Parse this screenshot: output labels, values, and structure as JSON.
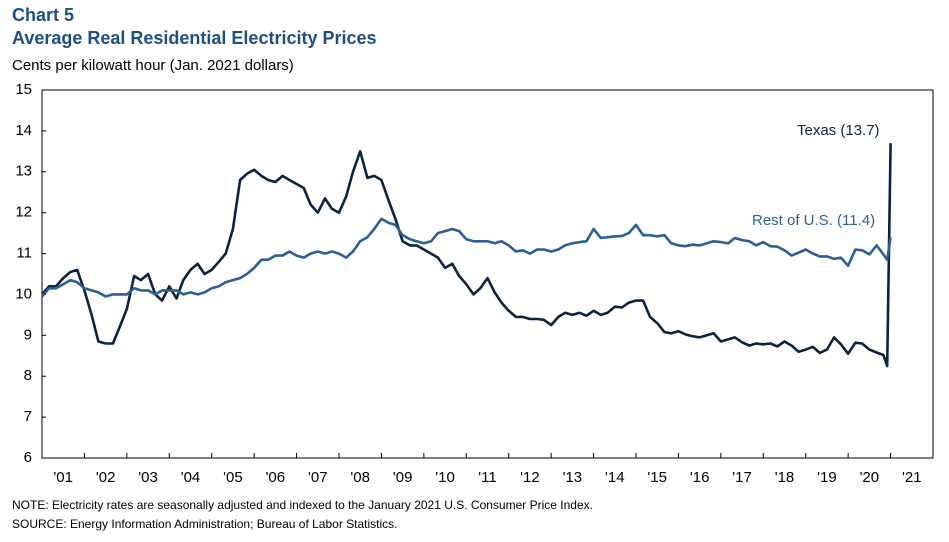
{
  "chart_data": {
    "type": "line",
    "title": "Chart 5",
    "subtitle": "Average Real Residential Electricity Prices",
    "y_label": "Cents per kilowatt hour (Jan. 2021 dollars)",
    "note": "NOTE: Electricity rates are seasonally adjusted and indexed to the January 2021 U.S. Consumer Price Index.",
    "source": "SOURCE: Energy Information  Administration; Bureau of Labor Statistics.",
    "annotations": [
      "Texas (13.7)",
      "Rest of U.S. (11.4)"
    ],
    "xlim": [
      2001,
      2022
    ],
    "xticks": [
      {
        "value": 2001,
        "label": "'01"
      },
      {
        "value": 2002,
        "label": "'02"
      },
      {
        "value": 2003,
        "label": "'03"
      },
      {
        "value": 2004,
        "label": "'04"
      },
      {
        "value": 2005,
        "label": "'05"
      },
      {
        "value": 2006,
        "label": "'06"
      },
      {
        "value": 2007,
        "label": "'07"
      },
      {
        "value": 2008,
        "label": "'08"
      },
      {
        "value": 2009,
        "label": "'09"
      },
      {
        "value": 2010,
        "label": "'10"
      },
      {
        "value": 2011,
        "label": "'11"
      },
      {
        "value": 2012,
        "label": "'12"
      },
      {
        "value": 2013,
        "label": "'13"
      },
      {
        "value": 2014,
        "label": "'14"
      },
      {
        "value": 2015,
        "label": "'15"
      },
      {
        "value": 2016,
        "label": "'16"
      },
      {
        "value": 2017,
        "label": "'17"
      },
      {
        "value": 2018,
        "label": "'18"
      },
      {
        "value": 2019,
        "label": "'19"
      },
      {
        "value": 2020,
        "label": "'20"
      },
      {
        "value": 2021,
        "label": "'21"
      }
    ],
    "ylim": [
      6,
      15
    ],
    "yticks": [
      6,
      7,
      8,
      9,
      10,
      11,
      12,
      13,
      14,
      15
    ],
    "grid": false,
    "x": [
      2001,
      2001.17,
      2001.33,
      2001.5,
      2001.67,
      2001.83,
      2002,
      2002.17,
      2002.33,
      2002.5,
      2002.67,
      2002.83,
      2003,
      2003.17,
      2003.33,
      2003.5,
      2003.67,
      2003.83,
      2004,
      2004.17,
      2004.33,
      2004.5,
      2004.67,
      2004.83,
      2005,
      2005.17,
      2005.33,
      2005.5,
      2005.67,
      2005.83,
      2006,
      2006.17,
      2006.33,
      2006.5,
      2006.67,
      2006.83,
      2007,
      2007.17,
      2007.33,
      2007.5,
      2007.67,
      2007.83,
      2008,
      2008.17,
      2008.33,
      2008.5,
      2008.67,
      2008.83,
      2009,
      2009.17,
      2009.33,
      2009.5,
      2009.67,
      2009.83,
      2010,
      2010.17,
      2010.33,
      2010.5,
      2010.67,
      2010.83,
      2011,
      2011.17,
      2011.33,
      2011.5,
      2011.67,
      2011.83,
      2012,
      2012.17,
      2012.33,
      2012.5,
      2012.67,
      2012.83,
      2013,
      2013.17,
      2013.33,
      2013.5,
      2013.67,
      2013.83,
      2014,
      2014.17,
      2014.33,
      2014.5,
      2014.67,
      2014.83,
      2015,
      2015.17,
      2015.33,
      2015.5,
      2015.67,
      2015.83,
      2016,
      2016.17,
      2016.33,
      2016.5,
      2016.67,
      2016.83,
      2017,
      2017.17,
      2017.33,
      2017.5,
      2017.67,
      2017.83,
      2018,
      2018.17,
      2018.33,
      2018.5,
      2018.67,
      2018.83,
      2019,
      2019.17,
      2019.33,
      2019.5,
      2019.67,
      2019.83,
      2020,
      2020.17,
      2020.33,
      2020.5,
      2020.67,
      2020.83,
      2020.92,
      2021
    ],
    "series": [
      {
        "name": "Texas",
        "color": "#0b2341",
        "values": [
          10.0,
          10.2,
          10.2,
          10.4,
          10.55,
          10.6,
          10.1,
          9.5,
          8.85,
          8.8,
          8.8,
          9.2,
          9.65,
          10.45,
          10.35,
          10.5,
          10.0,
          9.85,
          10.2,
          9.9,
          10.35,
          10.6,
          10.75,
          10.5,
          10.6,
          10.8,
          11.0,
          11.6,
          12.8,
          12.95,
          13.05,
          12.9,
          12.8,
          12.75,
          12.9,
          12.8,
          12.7,
          12.6,
          12.2,
          12.0,
          12.35,
          12.1,
          12.0,
          12.4,
          13.0,
          13.5,
          12.85,
          12.9,
          12.8,
          12.3,
          11.85,
          11.3,
          11.2,
          11.2,
          11.1,
          11.0,
          10.9,
          10.65,
          10.75,
          10.45,
          10.25,
          10.0,
          10.15,
          10.4,
          10.05,
          9.8,
          9.6,
          9.45,
          9.45,
          9.4,
          9.4,
          9.38,
          9.25,
          9.45,
          9.55,
          9.5,
          9.55,
          9.48,
          9.6,
          9.5,
          9.55,
          9.7,
          9.68,
          9.8,
          9.85,
          9.85,
          9.45,
          9.3,
          9.08,
          9.05,
          9.1,
          9.02,
          8.98,
          8.95,
          9.0,
          9.05,
          8.85,
          8.9,
          8.95,
          8.83,
          8.75,
          8.8,
          8.78,
          8.8,
          8.73,
          8.85,
          8.75,
          8.6,
          8.65,
          8.72,
          8.57,
          8.65,
          8.95,
          8.78,
          8.55,
          8.82,
          8.8,
          8.65,
          8.58,
          8.52,
          8.25,
          13.7
        ]
      },
      {
        "name": "Rest of U.S.",
        "color": "#2e5f94",
        "values": [
          9.95,
          10.15,
          10.15,
          10.25,
          10.35,
          10.3,
          10.15,
          10.1,
          10.05,
          9.95,
          10.0,
          10.0,
          10.0,
          10.15,
          10.1,
          10.1,
          10.0,
          10.1,
          10.1,
          10.1,
          10.0,
          10.05,
          10.0,
          10.05,
          10.15,
          10.2,
          10.3,
          10.35,
          10.4,
          10.5,
          10.65,
          10.85,
          10.85,
          10.95,
          10.95,
          11.05,
          10.95,
          10.9,
          11.0,
          11.05,
          11.0,
          11.05,
          11.0,
          10.9,
          11.05,
          11.3,
          11.4,
          11.6,
          11.85,
          11.75,
          11.7,
          11.45,
          11.35,
          11.3,
          11.25,
          11.3,
          11.5,
          11.55,
          11.6,
          11.55,
          11.35,
          11.3,
          11.3,
          11.3,
          11.25,
          11.3,
          11.2,
          11.05,
          11.08,
          11.0,
          11.1,
          11.1,
          11.05,
          11.1,
          11.2,
          11.25,
          11.28,
          11.3,
          11.6,
          11.38,
          11.4,
          11.42,
          11.43,
          11.5,
          11.7,
          11.45,
          11.45,
          11.42,
          11.45,
          11.25,
          11.2,
          11.18,
          11.22,
          11.2,
          11.25,
          11.3,
          11.28,
          11.25,
          11.38,
          11.33,
          11.3,
          11.2,
          11.28,
          11.18,
          11.17,
          11.08,
          10.95,
          11.02,
          11.1,
          11.0,
          10.93,
          10.93,
          10.87,
          10.9,
          10.7,
          11.1,
          11.08,
          10.98,
          11.2,
          10.98,
          10.85,
          11.4
        ]
      }
    ]
  }
}
